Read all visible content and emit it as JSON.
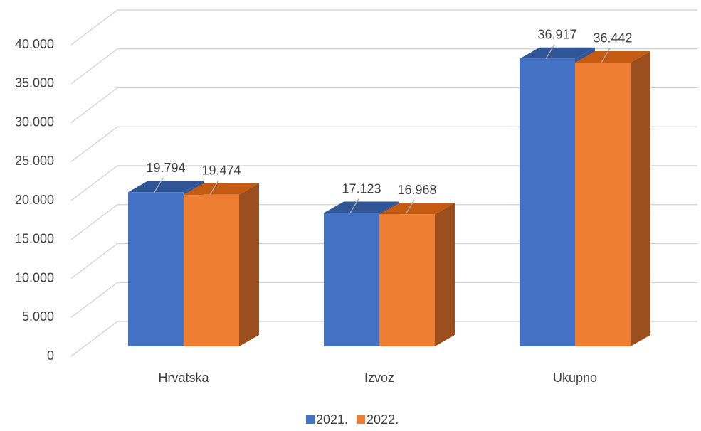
{
  "chart_data": {
    "type": "bar3d",
    "categories": [
      "Hrvatska",
      "Izvoz",
      "Ukupno"
    ],
    "series": [
      {
        "name": "2021.",
        "color": "#4472c4",
        "values": [
          19794,
          17123,
          36917
        ],
        "value_labels": [
          "19.794",
          "17.123",
          "36.917"
        ]
      },
      {
        "name": "2022.",
        "color": "#ed7d31",
        "values": [
          19474,
          16968,
          36442
        ],
        "value_labels": [
          "19.474",
          "16.968",
          "36.442"
        ]
      }
    ],
    "ylim": [
      0,
      40000
    ],
    "yticks": [
      0,
      {
        "value": 5000,
        "label": "5.000"
      },
      {
        "value": 10000,
        "label": "10.000"
      },
      {
        "value": 15000,
        "label": "15.000"
      },
      {
        "value": 20000,
        "label": "20.000"
      },
      {
        "value": 25000,
        "label": "25.000"
      },
      {
        "value": 30000,
        "label": "30.000"
      },
      {
        "value": 35000,
        "label": "35.000"
      },
      {
        "value": 40000,
        "label": "40.000"
      }
    ],
    "grid": true,
    "legend": "bottom"
  }
}
